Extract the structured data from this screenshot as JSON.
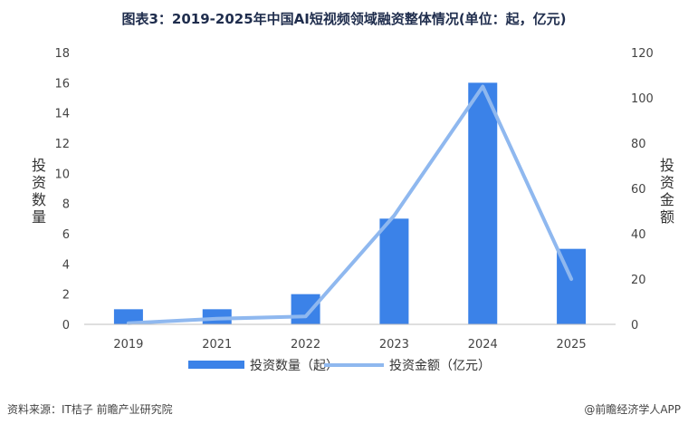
{
  "header": {
    "title": "图表3：2019-2025年中国AI短视频领域融资整体情况(单位：起，亿元)"
  },
  "footer": {
    "source": "资料来源：IT桔子 前瞻产业研究院",
    "brand": "@前瞻经济学人APP"
  },
  "watermark_text": "前瞻产业研究院",
  "chart_data": {
    "type": "bar",
    "categories": [
      "2019",
      "2021",
      "2022",
      "2023",
      "2024",
      "2025"
    ],
    "series": [
      {
        "name": "投资数量（起）",
        "type": "bar",
        "axis": "left",
        "values": [
          1,
          1,
          2,
          7,
          16,
          5
        ]
      },
      {
        "name": "投资金额（亿元）",
        "type": "line",
        "axis": "right",
        "values": [
          0.5,
          2.5,
          3.5,
          48,
          105,
          20
        ]
      }
    ],
    "y_left": {
      "label": "投资数量",
      "min": 0,
      "max": 18,
      "ticks": [
        0,
        2,
        4,
        6,
        8,
        10,
        12,
        14,
        16,
        18
      ]
    },
    "y_right": {
      "label": "投资金额",
      "min": 0,
      "max": 120,
      "ticks": [
        0,
        20,
        40,
        60,
        80,
        100,
        120
      ]
    },
    "colors": {
      "bar": "#3b82e8",
      "line": "#8fb8ef"
    },
    "legend": "bottom",
    "grid": false
  }
}
